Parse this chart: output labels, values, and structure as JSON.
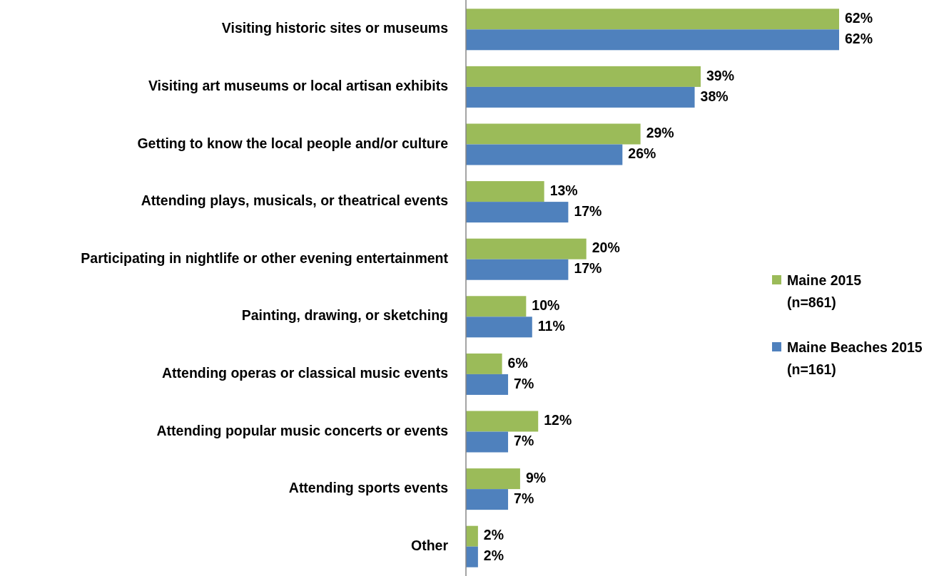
{
  "chart_data": {
    "type": "bar",
    "orientation": "horizontal",
    "legend": "right",
    "categories": [
      "Visiting historic sites or museums",
      "Visiting art museums or local artisan exhibits",
      "Getting to know the local people and/or culture",
      "Attending plays, musicals, or theatrical events",
      "Participating in nightlife or other evening entertainment",
      "Painting, drawing, or sketching",
      "Attending operas or classical music events",
      "Attending popular music concerts or events",
      "Attending sports events",
      "Other"
    ],
    "series": [
      {
        "name": "Maine 2015 (n=861)",
        "color": "#9bbb59",
        "values": [
          62,
          39,
          29,
          13,
          20,
          10,
          6,
          12,
          9,
          2
        ],
        "value_labels": [
          "62%",
          "39%",
          "29%",
          "13%",
          "20%",
          "10%",
          "6%",
          "12%",
          "9%",
          "2%"
        ]
      },
      {
        "name": "Maine Beaches 2015 (n=161)",
        "color": "#4f81bd",
        "values": [
          62,
          38,
          26,
          17,
          17,
          11,
          7,
          7,
          7,
          2
        ],
        "value_labels": [
          "62%",
          "38%",
          "26%",
          "17%",
          "17%",
          "11%",
          "7%",
          "7%",
          "7%",
          "2%"
        ]
      }
    ]
  }
}
